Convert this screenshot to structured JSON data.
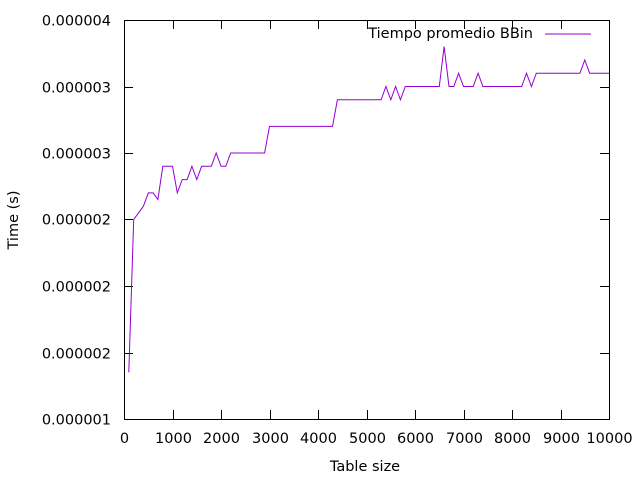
{
  "chart_data": {
    "type": "line",
    "xlabel": "Table size",
    "ylabel": "Time (s)",
    "xlim": [
      0,
      10000
    ],
    "ylim": [
      1e-06,
      4e-06
    ],
    "xticks": [
      {
        "value": 0,
        "label": "0"
      },
      {
        "value": 1000,
        "label": "1000"
      },
      {
        "value": 2000,
        "label": "2000"
      },
      {
        "value": 3000,
        "label": "3000"
      },
      {
        "value": 4000,
        "label": "4000"
      },
      {
        "value": 5000,
        "label": "5000"
      },
      {
        "value": 6000,
        "label": "6000"
      },
      {
        "value": 7000,
        "label": "7000"
      },
      {
        "value": 8000,
        "label": "8000"
      },
      {
        "value": 9000,
        "label": "9000"
      },
      {
        "value": 10000,
        "label": "10000"
      }
    ],
    "yticks": [
      {
        "value": 1e-06,
        "label": "0.000001"
      },
      {
        "value": 1.5e-06,
        "label": "0.000002"
      },
      {
        "value": 2e-06,
        "label": "0.000002"
      },
      {
        "value": 2.5e-06,
        "label": "0.000002"
      },
      {
        "value": 3e-06,
        "label": "0.000003"
      },
      {
        "value": 3.5e-06,
        "label": "0.000003"
      },
      {
        "value": 4e-06,
        "label": "0.000004"
      }
    ],
    "grid": false,
    "legend_position": "top-right",
    "series": [
      {
        "name": "Tiempo promedio BBin",
        "color": "#9400d3",
        "x": [
          100,
          200,
          300,
          400,
          500,
          600,
          700,
          800,
          900,
          1000,
          1100,
          1200,
          1300,
          1400,
          1500,
          1600,
          1700,
          1800,
          1900,
          2000,
          2100,
          2200,
          2300,
          2400,
          2500,
          2600,
          2700,
          2800,
          2900,
          3000,
          3100,
          3200,
          3300,
          3400,
          3500,
          3600,
          3700,
          3800,
          3900,
          4000,
          4100,
          4200,
          4300,
          4400,
          4500,
          4600,
          4700,
          4800,
          4900,
          5000,
          5100,
          5200,
          5300,
          5400,
          5500,
          5600,
          5700,
          5800,
          5900,
          6000,
          6100,
          6200,
          6300,
          6400,
          6500,
          6600,
          6700,
          6800,
          6900,
          7000,
          7100,
          7200,
          7300,
          7400,
          7500,
          7600,
          7700,
          7800,
          7900,
          8000,
          8100,
          8200,
          8300,
          8400,
          8500,
          8600,
          8700,
          8800,
          8900,
          9000,
          9100,
          9200,
          9300,
          9400,
          9500,
          9600,
          9700,
          9800,
          9900,
          10000
        ],
        "values": [
          1.35e-06,
          2.5e-06,
          2.55e-06,
          2.6e-06,
          2.7e-06,
          2.7e-06,
          2.65e-06,
          2.9e-06,
          2.9e-06,
          2.9e-06,
          2.7e-06,
          2.8e-06,
          2.8e-06,
          2.9e-06,
          2.8e-06,
          2.9e-06,
          2.9e-06,
          2.9e-06,
          3e-06,
          2.9e-06,
          2.9e-06,
          3e-06,
          3e-06,
          3e-06,
          3e-06,
          3e-06,
          3e-06,
          3e-06,
          3e-06,
          3.2e-06,
          3.2e-06,
          3.2e-06,
          3.2e-06,
          3.2e-06,
          3.2e-06,
          3.2e-06,
          3.2e-06,
          3.2e-06,
          3.2e-06,
          3.2e-06,
          3.2e-06,
          3.2e-06,
          3.2e-06,
          3.4e-06,
          3.4e-06,
          3.4e-06,
          3.4e-06,
          3.4e-06,
          3.4e-06,
          3.4e-06,
          3.4e-06,
          3.4e-06,
          3.4e-06,
          3.5e-06,
          3.4e-06,
          3.5e-06,
          3.4e-06,
          3.5e-06,
          3.5e-06,
          3.5e-06,
          3.5e-06,
          3.5e-06,
          3.5e-06,
          3.5e-06,
          3.5e-06,
          3.8e-06,
          3.5e-06,
          3.5e-06,
          3.6e-06,
          3.5e-06,
          3.5e-06,
          3.5e-06,
          3.6e-06,
          3.5e-06,
          3.5e-06,
          3.5e-06,
          3.5e-06,
          3.5e-06,
          3.5e-06,
          3.5e-06,
          3.5e-06,
          3.5e-06,
          3.6e-06,
          3.5e-06,
          3.6e-06,
          3.6e-06,
          3.6e-06,
          3.6e-06,
          3.6e-06,
          3.6e-06,
          3.6e-06,
          3.6e-06,
          3.6e-06,
          3.6e-06,
          3.7e-06,
          3.6e-06,
          3.6e-06,
          3.6e-06,
          3.6e-06,
          3.6e-06
        ]
      }
    ]
  }
}
